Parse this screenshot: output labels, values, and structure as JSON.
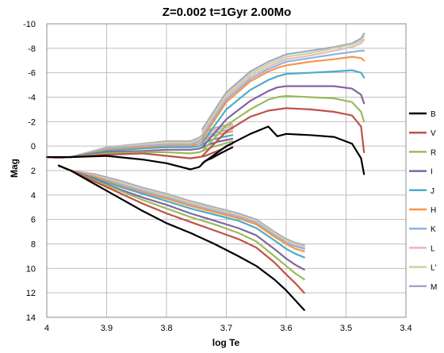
{
  "chart_data": {
    "type": "line",
    "title": "Z=0.002   t=1Gyr   2.00Mo",
    "xlabel": "log Te",
    "ylabel": "Mag",
    "xlim": [
      4.0,
      3.4
    ],
    "ylim": [
      14,
      -10
    ],
    "x_reversed": true,
    "y_reversed": true,
    "x_ticks": [
      4,
      3.9,
      3.8,
      3.7,
      3.6,
      3.5,
      3.4
    ],
    "x_tick_labels": [
      "4",
      "3.9",
      "3.8",
      "3.7",
      "3.6",
      "3.5",
      "3.4"
    ],
    "y_ticks": [
      -10,
      -8,
      -6,
      -4,
      -2,
      0,
      2,
      4,
      6,
      8,
      10,
      12,
      14
    ],
    "y_tick_labels": [
      "-10",
      "-8",
      "-6",
      "-4",
      "-2",
      "0",
      "2",
      "4",
      "6",
      "8",
      "10",
      "12",
      "14"
    ],
    "grid": true,
    "legend_position": "right",
    "track": {
      "x": [
        3.99,
        3.96,
        3.97,
        3.98,
        3.96,
        3.92,
        3.86,
        3.8,
        3.76,
        3.74,
        3.73,
        3.72,
        3.71,
        3.7,
        3.69,
        3.74,
        3.7,
        3.65,
        3.63,
        3.615,
        3.6,
        3.55,
        3.52,
        3.5,
        3.485,
        3.47
      ],
      "B_offset": [
        0.9,
        0.9,
        1.4,
        1.8,
        1.95,
        1.4,
        1.2,
        1.4,
        1.9,
        1.5,
        1.2,
        0.8,
        0.5,
        0.1,
        -0.15,
        1.3,
        -0.3,
        -1.4,
        -1.5,
        -0.7,
        -1.0,
        -0.85,
        -0.75,
        -0.7,
        -0.2,
        2.3
      ],
      "lower": {
        "x": [
          3.96,
          3.92,
          3.88,
          3.84,
          3.8,
          3.76,
          3.72,
          3.68,
          3.65,
          3.62,
          3.6,
          3.585,
          3.57
        ],
        "B": [
          2.0,
          3.1,
          4.2,
          5.3,
          6.3,
          7.1,
          8.0,
          9.0,
          9.8,
          10.9,
          11.8,
          12.6,
          13.4
        ]
      }
    },
    "series": [
      {
        "name": "B",
        "color": "#000000",
        "upper_x": [
          4.0,
          3.98,
          3.96,
          3.9,
          3.84,
          3.8,
          3.76,
          3.745,
          3.735,
          3.725,
          3.71,
          3.69
        ],
        "upper_y": [
          0.9,
          0.9,
          0.9,
          0.8,
          1.1,
          1.4,
          1.9,
          1.7,
          1.2,
          1.0,
          0.6,
          0.1
        ],
        "upper2_x": [
          3.74,
          3.7,
          3.66,
          3.63,
          3.615,
          3.6,
          3.56,
          3.52,
          3.49,
          3.475,
          3.47
        ],
        "upper2_y": [
          1.4,
          0.0,
          -1.0,
          -1.6,
          -0.8,
          -1.0,
          -0.9,
          -0.75,
          -0.2,
          1.0,
          2.3
        ],
        "lower_x": [
          3.98,
          3.96,
          3.92,
          3.88,
          3.84,
          3.8,
          3.76,
          3.72,
          3.68,
          3.65,
          3.62,
          3.6,
          3.585,
          3.57
        ],
        "lower_y": [
          1.6,
          2.0,
          3.1,
          4.2,
          5.3,
          6.3,
          7.1,
          8.0,
          9.0,
          9.8,
          10.9,
          11.8,
          12.6,
          13.4
        ]
      },
      {
        "name": "V",
        "color": "#c0504d",
        "upper_x": [
          4.0,
          3.98,
          3.96,
          3.9,
          3.84,
          3.8,
          3.76,
          3.745,
          3.735,
          3.725,
          3.71,
          3.69
        ],
        "upper_y": [
          0.9,
          0.95,
          0.9,
          0.7,
          0.6,
          0.8,
          1.0,
          0.9,
          0.8,
          0.6,
          0.3,
          -0.2
        ],
        "upper2_x": [
          3.74,
          3.7,
          3.66,
          3.63,
          3.615,
          3.6,
          3.56,
          3.52,
          3.49,
          3.475,
          3.47
        ],
        "upper2_y": [
          0.8,
          -1.2,
          -2.4,
          -2.9,
          -3.0,
          -3.1,
          -3.0,
          -2.8,
          -2.5,
          -1.6,
          0.5
        ],
        "lower_x": [
          3.98,
          3.96,
          3.92,
          3.88,
          3.84,
          3.8,
          3.76,
          3.72,
          3.68,
          3.65,
          3.62,
          3.6,
          3.585,
          3.57
        ],
        "lower_y": [
          1.6,
          2.0,
          2.9,
          3.8,
          4.7,
          5.5,
          6.2,
          6.9,
          7.6,
          8.3,
          9.5,
          10.5,
          11.2,
          12.0
        ]
      },
      {
        "name": "R",
        "color": "#9bbb59",
        "upper_x": [
          4.0,
          3.98,
          3.96,
          3.9,
          3.84,
          3.8,
          3.76,
          3.745,
          3.735,
          3.725,
          3.71,
          3.69
        ],
        "upper_y": [
          0.9,
          0.95,
          0.9,
          0.6,
          0.5,
          0.5,
          0.6,
          0.5,
          0.3,
          0.1,
          -0.1,
          -0.4
        ],
        "upper2_x": [
          3.74,
          3.7,
          3.66,
          3.63,
          3.615,
          3.6,
          3.56,
          3.52,
          3.49,
          3.475,
          3.47
        ],
        "upper2_y": [
          0.4,
          -1.7,
          -3.0,
          -3.8,
          -4.0,
          -4.1,
          -4.0,
          -3.9,
          -3.6,
          -2.8,
          -2.0
        ],
        "lower_x": [
          3.98,
          3.96,
          3.92,
          3.88,
          3.84,
          3.8,
          3.76,
          3.72,
          3.68,
          3.65,
          3.62,
          3.6,
          3.585,
          3.57
        ],
        "lower_y": [
          1.6,
          2.0,
          2.8,
          3.6,
          4.4,
          5.1,
          5.8,
          6.4,
          7.1,
          7.8,
          9.0,
          9.8,
          10.4,
          10.9
        ]
      },
      {
        "name": "I",
        "color": "#8064a2",
        "upper_x": [
          4.0,
          3.98,
          3.96,
          3.9,
          3.84,
          3.8,
          3.76,
          3.745,
          3.735,
          3.725,
          3.71,
          3.69
        ],
        "upper_y": [
          0.9,
          0.95,
          0.9,
          0.5,
          0.4,
          0.3,
          0.3,
          0.2,
          0.0,
          -0.2,
          -0.4,
          -0.6
        ],
        "upper2_x": [
          3.74,
          3.7,
          3.66,
          3.63,
          3.615,
          3.6,
          3.56,
          3.52,
          3.49,
          3.475,
          3.47
        ],
        "upper2_y": [
          0.1,
          -2.2,
          -3.7,
          -4.5,
          -4.8,
          -4.9,
          -4.9,
          -4.9,
          -4.7,
          -4.2,
          -3.5
        ],
        "lower_x": [
          3.98,
          3.96,
          3.92,
          3.88,
          3.84,
          3.8,
          3.76,
          3.72,
          3.68,
          3.65,
          3.62,
          3.6,
          3.585,
          3.57
        ],
        "lower_y": [
          1.6,
          2.0,
          2.7,
          3.5,
          4.2,
          4.8,
          5.5,
          6.1,
          6.7,
          7.3,
          8.4,
          9.2,
          9.7,
          10.1
        ]
      },
      {
        "name": "J",
        "color": "#4bacc6",
        "upper_x": [
          4.0,
          3.98,
          3.96,
          3.9,
          3.84,
          3.8,
          3.76,
          3.745,
          3.735,
          3.725,
          3.71,
          3.69
        ],
        "upper_y": [
          0.9,
          0.95,
          0.9,
          0.4,
          0.2,
          0.1,
          0.1,
          0.0,
          -0.3,
          -0.5,
          -0.7,
          -0.9
        ],
        "upper2_x": [
          3.74,
          3.7,
          3.66,
          3.63,
          3.615,
          3.6,
          3.56,
          3.52,
          3.49,
          3.475,
          3.47
        ],
        "upper2_y": [
          -0.3,
          -3.0,
          -4.6,
          -5.4,
          -5.7,
          -5.9,
          -6.0,
          -6.1,
          -6.2,
          -6.0,
          -5.6
        ],
        "lower_x": [
          3.98,
          3.96,
          3.92,
          3.88,
          3.84,
          3.8,
          3.76,
          3.72,
          3.68,
          3.65,
          3.62,
          3.6,
          3.585,
          3.57
        ],
        "lower_y": [
          1.6,
          2.0,
          2.6,
          3.3,
          3.9,
          4.5,
          5.1,
          5.6,
          6.1,
          6.7,
          7.7,
          8.4,
          8.8,
          9.1
        ]
      },
      {
        "name": "H",
        "color": "#f79646",
        "upper_x": [
          4.0,
          3.98,
          3.96,
          3.9,
          3.84,
          3.8,
          3.76,
          3.745,
          3.735,
          3.725,
          3.71,
          3.69
        ],
        "upper_y": [
          0.9,
          0.95,
          0.9,
          0.3,
          0.1,
          0.0,
          0.0,
          -0.2,
          -0.5,
          -0.8,
          -1.0,
          -1.2
        ],
        "upper2_x": [
          3.74,
          3.7,
          3.66,
          3.63,
          3.615,
          3.6,
          3.56,
          3.52,
          3.49,
          3.475,
          3.47
        ],
        "upper2_y": [
          -0.6,
          -3.6,
          -5.3,
          -6.1,
          -6.4,
          -6.6,
          -6.9,
          -7.1,
          -7.3,
          -7.2,
          -7.0
        ],
        "lower_x": [
          3.98,
          3.96,
          3.92,
          3.88,
          3.84,
          3.8,
          3.76,
          3.72,
          3.68,
          3.65,
          3.62,
          3.6,
          3.585,
          3.57
        ],
        "lower_y": [
          1.6,
          2.0,
          2.5,
          3.2,
          3.8,
          4.3,
          4.9,
          5.4,
          5.9,
          6.4,
          7.4,
          8.0,
          8.4,
          8.6
        ]
      },
      {
        "name": "K",
        "color": "#8eb4e3",
        "upper_x": [
          4.0,
          3.98,
          3.96,
          3.9,
          3.84,
          3.8,
          3.76,
          3.745,
          3.735,
          3.725,
          3.71,
          3.69
        ],
        "upper_y": [
          0.9,
          0.95,
          0.9,
          0.2,
          0.0,
          -0.1,
          -0.1,
          -0.4,
          -0.7,
          -1.0,
          -1.2,
          -1.4
        ],
        "upper2_x": [
          3.74,
          3.7,
          3.66,
          3.63,
          3.615,
          3.6,
          3.56,
          3.52,
          3.49,
          3.475,
          3.47
        ],
        "upper2_y": [
          -0.8,
          -3.8,
          -5.5,
          -6.3,
          -6.6,
          -6.9,
          -7.2,
          -7.5,
          -7.7,
          -7.8,
          -7.8
        ],
        "lower_x": [
          3.98,
          3.96,
          3.92,
          3.88,
          3.84,
          3.8,
          3.76,
          3.72,
          3.68,
          3.65,
          3.62,
          3.6,
          3.585,
          3.57
        ],
        "lower_y": [
          1.6,
          2.0,
          2.5,
          3.1,
          3.7,
          4.2,
          4.8,
          5.3,
          5.8,
          6.3,
          7.3,
          7.9,
          8.2,
          8.4
        ]
      },
      {
        "name": "L",
        "color": "#e6b9b8",
        "upper_x": [
          4.0,
          3.98,
          3.96,
          3.9,
          3.84,
          3.8,
          3.76,
          3.745,
          3.735,
          3.725,
          3.71,
          3.69
        ],
        "upper_y": [
          0.9,
          0.95,
          0.9,
          0.2,
          -0.1,
          -0.2,
          -0.2,
          -0.5,
          -0.9,
          -1.2,
          -1.4,
          -1.6
        ],
        "upper2_x": [
          3.74,
          3.7,
          3.66,
          3.63,
          3.615,
          3.6,
          3.56,
          3.52,
          3.49,
          3.475,
          3.47
        ],
        "upper2_y": [
          -1.0,
          -4.0,
          -5.7,
          -6.5,
          -6.8,
          -7.1,
          -7.4,
          -7.8,
          -8.1,
          -8.4,
          -8.7
        ],
        "lower_x": [
          3.98,
          3.96,
          3.92,
          3.88,
          3.84,
          3.8,
          3.76,
          3.72,
          3.68,
          3.65,
          3.62,
          3.6,
          3.585,
          3.57
        ],
        "lower_y": [
          1.6,
          2.0,
          2.4,
          3.0,
          3.6,
          4.1,
          4.7,
          5.2,
          5.7,
          6.2,
          7.2,
          7.8,
          8.1,
          8.3
        ]
      },
      {
        "name": "L'",
        "color": "#c3d69b",
        "upper_x": [
          4.0,
          3.98,
          3.96,
          3.9,
          3.84,
          3.8,
          3.76,
          3.745,
          3.735,
          3.725,
          3.71,
          3.69
        ],
        "upper_y": [
          0.9,
          0.95,
          0.9,
          0.15,
          -0.15,
          -0.3,
          -0.3,
          -0.6,
          -1.0,
          -1.3,
          -1.5,
          -1.7
        ],
        "upper2_x": [
          3.74,
          3.7,
          3.66,
          3.63,
          3.615,
          3.6,
          3.56,
          3.52,
          3.49,
          3.475,
          3.47
        ],
        "upper2_y": [
          -1.2,
          -4.2,
          -5.9,
          -6.7,
          -7.0,
          -7.3,
          -7.6,
          -8.0,
          -8.3,
          -8.6,
          -9.0
        ],
        "lower_x": [
          3.98,
          3.96,
          3.92,
          3.88,
          3.84,
          3.8,
          3.76,
          3.72,
          3.68,
          3.65,
          3.62,
          3.6,
          3.585,
          3.57
        ],
        "lower_y": [
          1.6,
          2.0,
          2.4,
          2.9,
          3.5,
          4.0,
          4.6,
          5.1,
          5.6,
          6.1,
          7.1,
          7.7,
          8.0,
          8.2
        ]
      },
      {
        "name": "M",
        "color": "#a6a6c8",
        "upper_x": [
          4.0,
          3.98,
          3.96,
          3.9,
          3.84,
          3.8,
          3.76,
          3.745,
          3.735,
          3.725,
          3.71,
          3.69
        ],
        "upper_y": [
          0.9,
          0.95,
          0.9,
          0.1,
          -0.2,
          -0.4,
          -0.4,
          -0.7,
          -1.1,
          -1.4,
          -1.6,
          -1.8
        ],
        "upper2_x": [
          3.74,
          3.7,
          3.66,
          3.63,
          3.615,
          3.6,
          3.56,
          3.52,
          3.49,
          3.475,
          3.47
        ],
        "upper2_y": [
          -1.4,
          -4.4,
          -6.1,
          -6.9,
          -7.2,
          -7.5,
          -7.8,
          -8.1,
          -8.4,
          -8.8,
          -9.2
        ],
        "lower_x": [
          3.98,
          3.96,
          3.92,
          3.88,
          3.84,
          3.8,
          3.76,
          3.72,
          3.68,
          3.65,
          3.62,
          3.6,
          3.585,
          3.57
        ],
        "lower_y": [
          1.6,
          2.0,
          2.3,
          2.8,
          3.4,
          3.9,
          4.5,
          5.0,
          5.5,
          6.0,
          7.0,
          7.6,
          7.9,
          8.1
        ]
      }
    ]
  }
}
